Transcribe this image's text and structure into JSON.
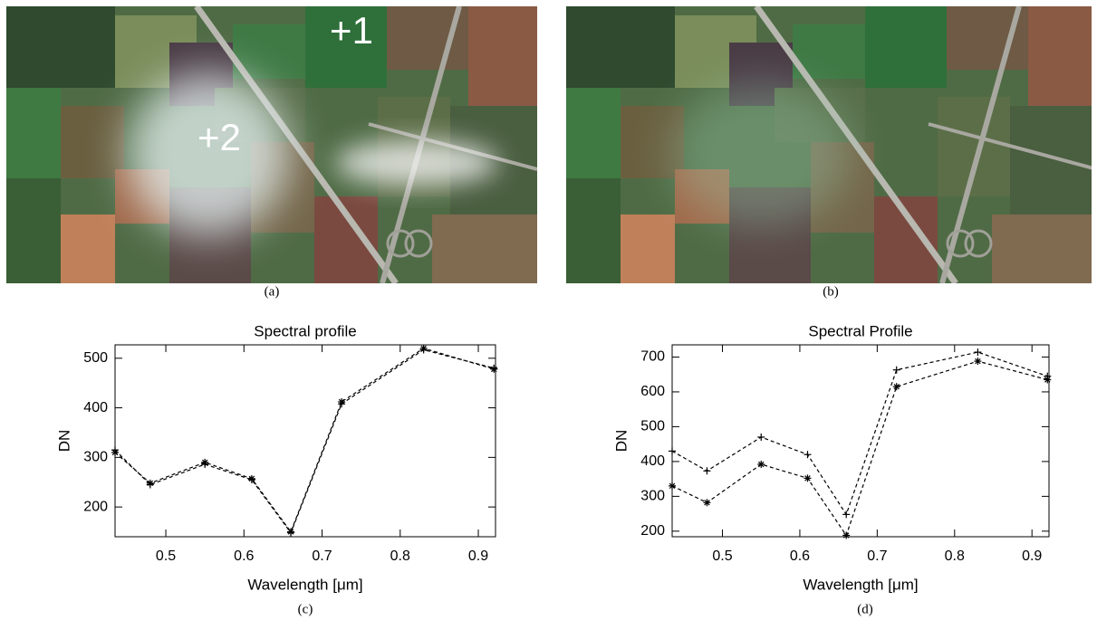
{
  "panels": {
    "a": "(a)",
    "b": "(b)",
    "c": "(c)",
    "d": "(d)"
  },
  "annotations": {
    "point1": "+1",
    "point2": "+2"
  },
  "chart_data": [
    {
      "type": "line",
      "title": "Spectral profile",
      "x_label": "Wavelength [μm]",
      "y_label": "DN",
      "x": [
        0.435,
        0.48,
        0.55,
        0.61,
        0.66,
        0.725,
        0.83,
        0.92
      ],
      "series": [
        {
          "color": "#000000",
          "marker": "asterisk",
          "values": [
            310,
            248,
            290,
            257,
            150,
            412,
            520,
            478
          ]
        },
        {
          "color": "#000000",
          "marker": "plus",
          "values": [
            315,
            245,
            286,
            255,
            148,
            408,
            517,
            480
          ]
        }
      ],
      "xlim": [
        0.435,
        0.922
      ],
      "xticks": [
        0.5,
        0.6,
        0.7,
        0.8,
        0.9
      ],
      "ylim": [
        140,
        527
      ],
      "yticks": [
        200,
        300,
        400,
        500
      ]
    },
    {
      "type": "line",
      "title": "Spectral Profile",
      "x_label": "Wavelength [μm]",
      "y_label": "DN",
      "x": [
        0.435,
        0.48,
        0.55,
        0.61,
        0.66,
        0.725,
        0.83,
        0.92
      ],
      "series": [
        {
          "color": "#000000",
          "marker": "plus",
          "values": [
            430,
            373,
            470,
            420,
            248,
            663,
            714,
            645
          ]
        },
        {
          "color": "#000000",
          "marker": "asterisk",
          "values": [
            330,
            282,
            392,
            352,
            188,
            615,
            688,
            635
          ]
        }
      ],
      "xlim": [
        0.435,
        0.922
      ],
      "xticks": [
        0.5,
        0.6,
        0.7,
        0.8,
        0.9
      ],
      "ylim": [
        184,
        735
      ],
      "yticks": [
        200,
        300,
        400,
        500,
        600,
        700
      ]
    }
  ]
}
